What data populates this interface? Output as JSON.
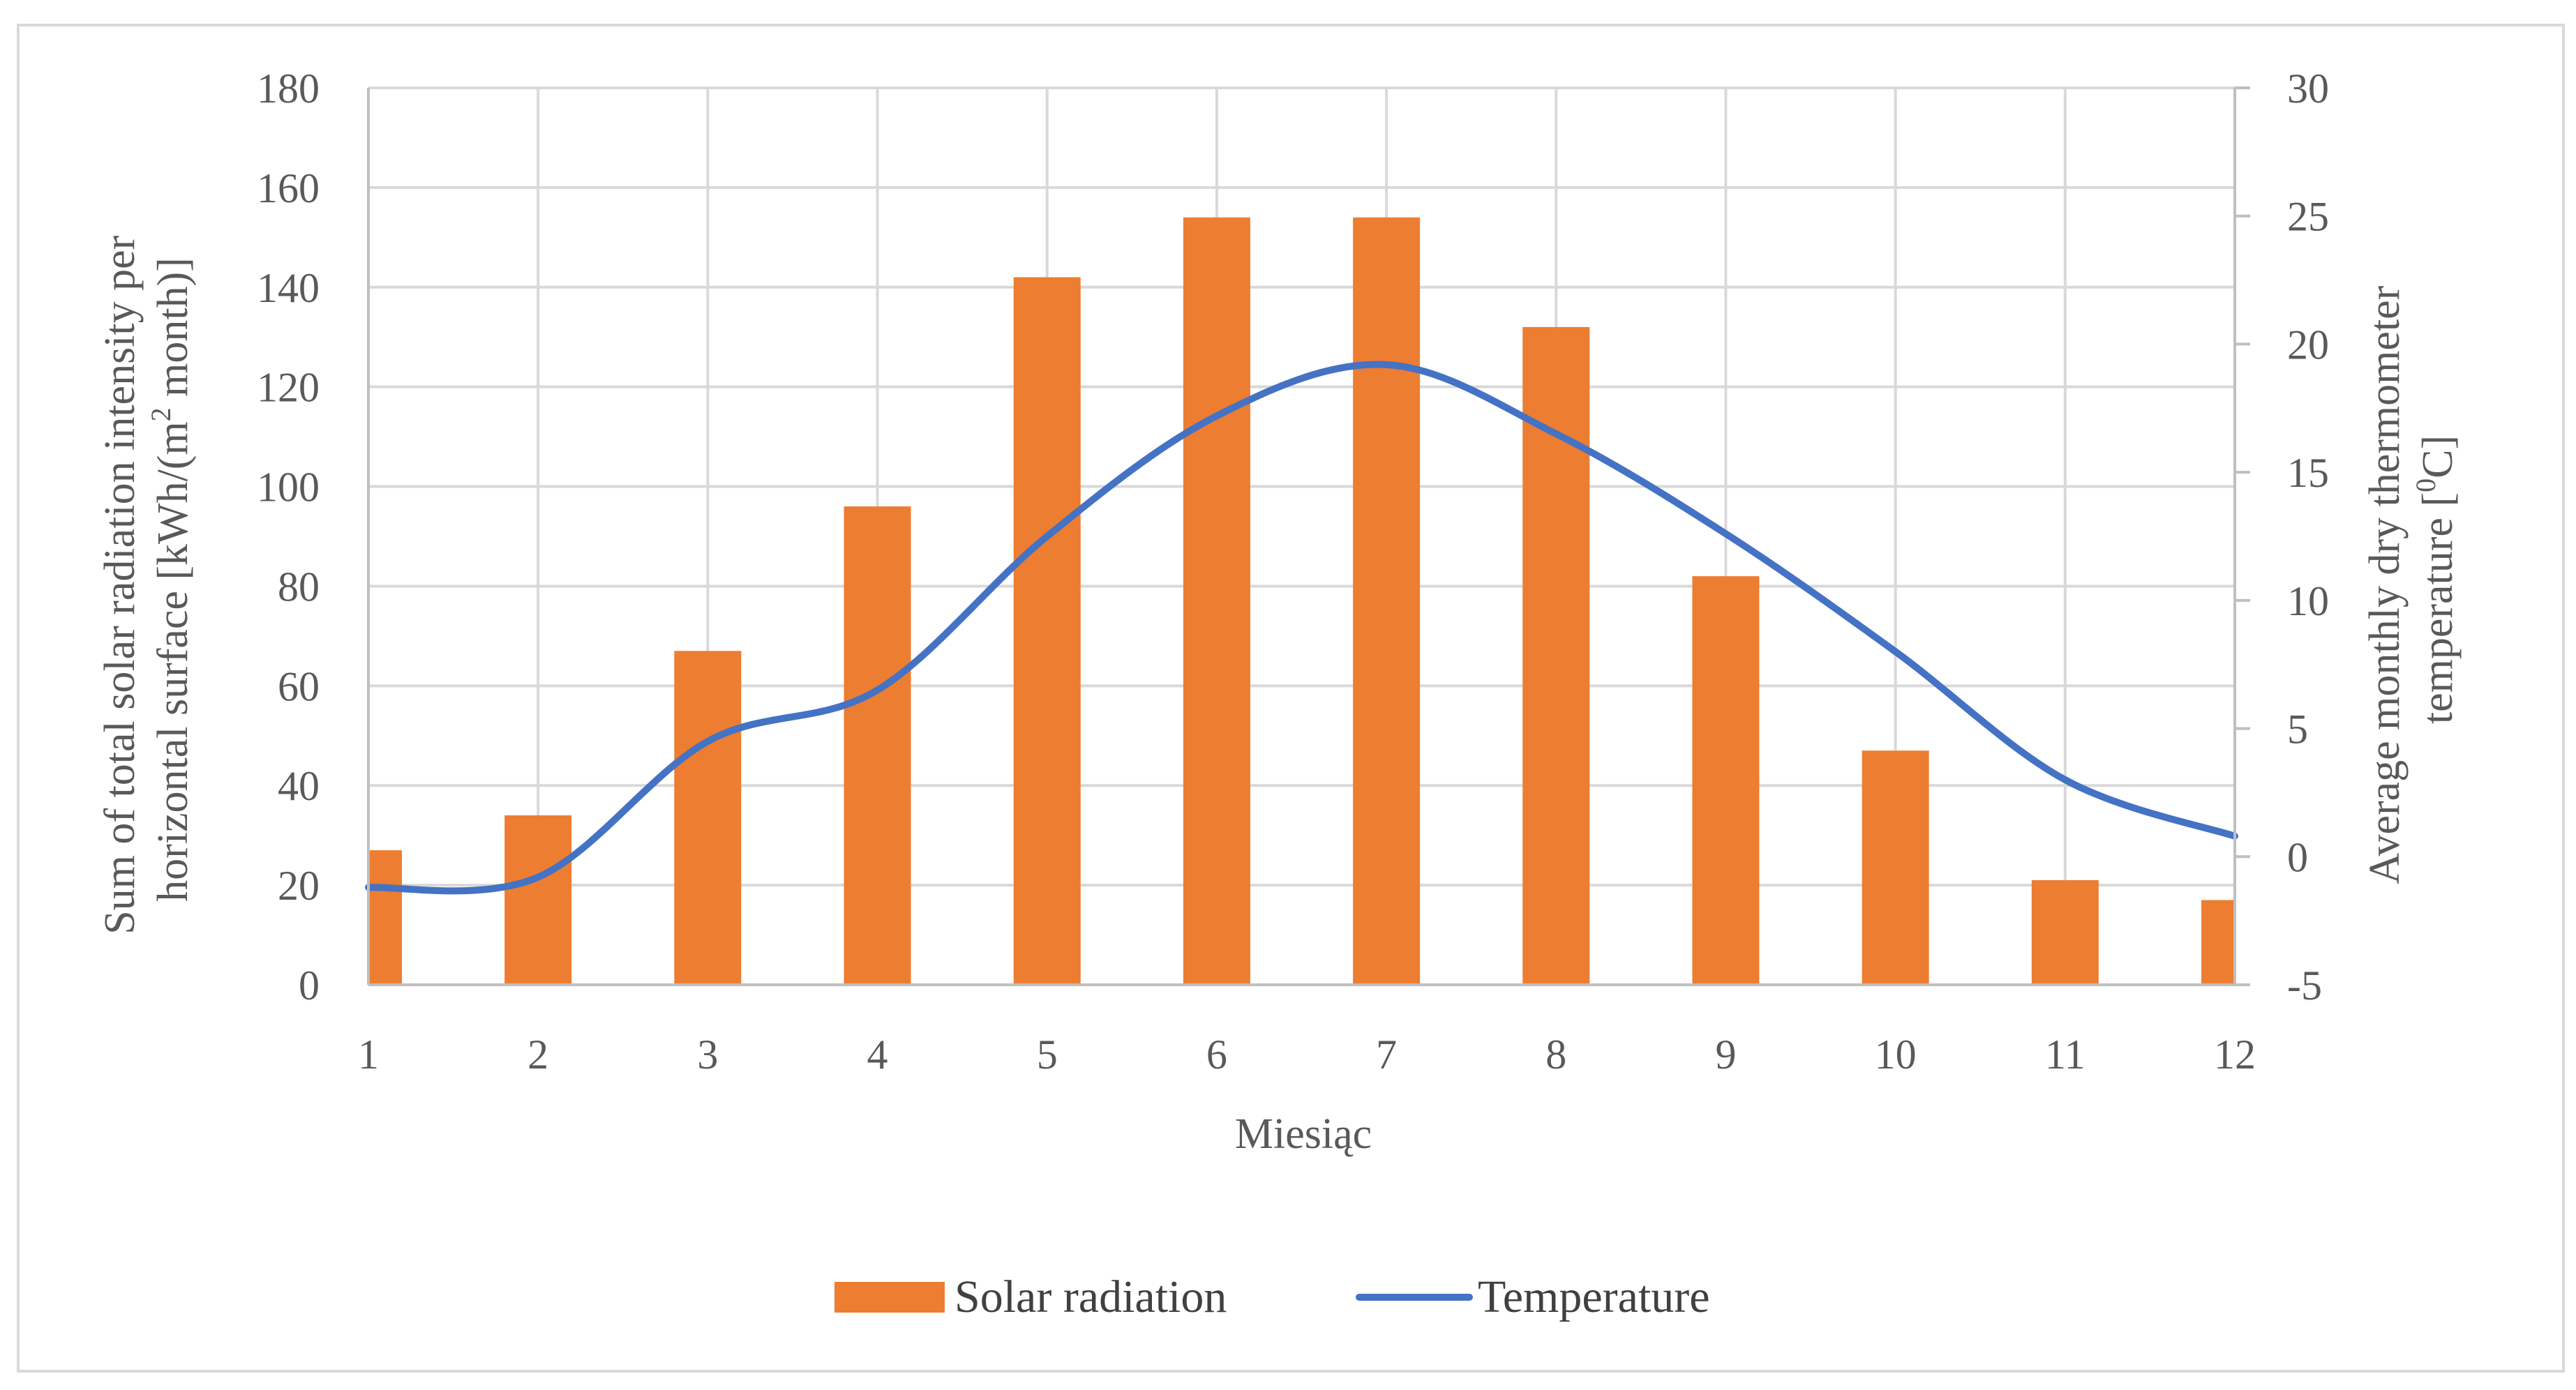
{
  "chart_data": {
    "type": "bar",
    "title": "",
    "xlabel": "Miesiąc",
    "categories": [
      "1",
      "2",
      "3",
      "4",
      "5",
      "6",
      "7",
      "8",
      "9",
      "10",
      "11",
      "12"
    ],
    "series": [
      {
        "name": "Solar radiation",
        "type": "bar",
        "axis": "left",
        "color": "#ED7D31",
        "values": [
          27,
          34,
          67,
          96,
          142,
          154,
          154,
          132,
          82,
          47,
          21,
          17
        ]
      },
      {
        "name": "Temperature",
        "type": "line",
        "smooth": true,
        "axis": "right",
        "color": "#4472C4",
        "values": [
          -1.2,
          -0.8,
          4.5,
          6.5,
          12.5,
          17.2,
          19.2,
          16.5,
          12.6,
          8.0,
          3.0,
          0.8
        ]
      }
    ],
    "y_left": {
      "label_lines": [
        "Sum of total solar radiation intensity per",
        "horizontal surface [kWh/(m",
        "2",
        " month)]"
      ],
      "ylim": [
        0,
        180
      ],
      "ticks": [
        "0",
        "20",
        "40",
        "60",
        "80",
        "100",
        "120",
        "140",
        "160",
        "180"
      ]
    },
    "y_right": {
      "label_lines": [
        "Average monthly dry thermometer",
        "temperature [",
        "0",
        "C]"
      ],
      "ylim": [
        -5,
        30
      ],
      "ticks": [
        "-5",
        "0",
        "5",
        "10",
        "15",
        "20",
        "25",
        "30"
      ]
    },
    "grid": true,
    "legend": {
      "position": "bottom",
      "items": [
        "Solar radiation",
        "Temperature"
      ]
    }
  }
}
